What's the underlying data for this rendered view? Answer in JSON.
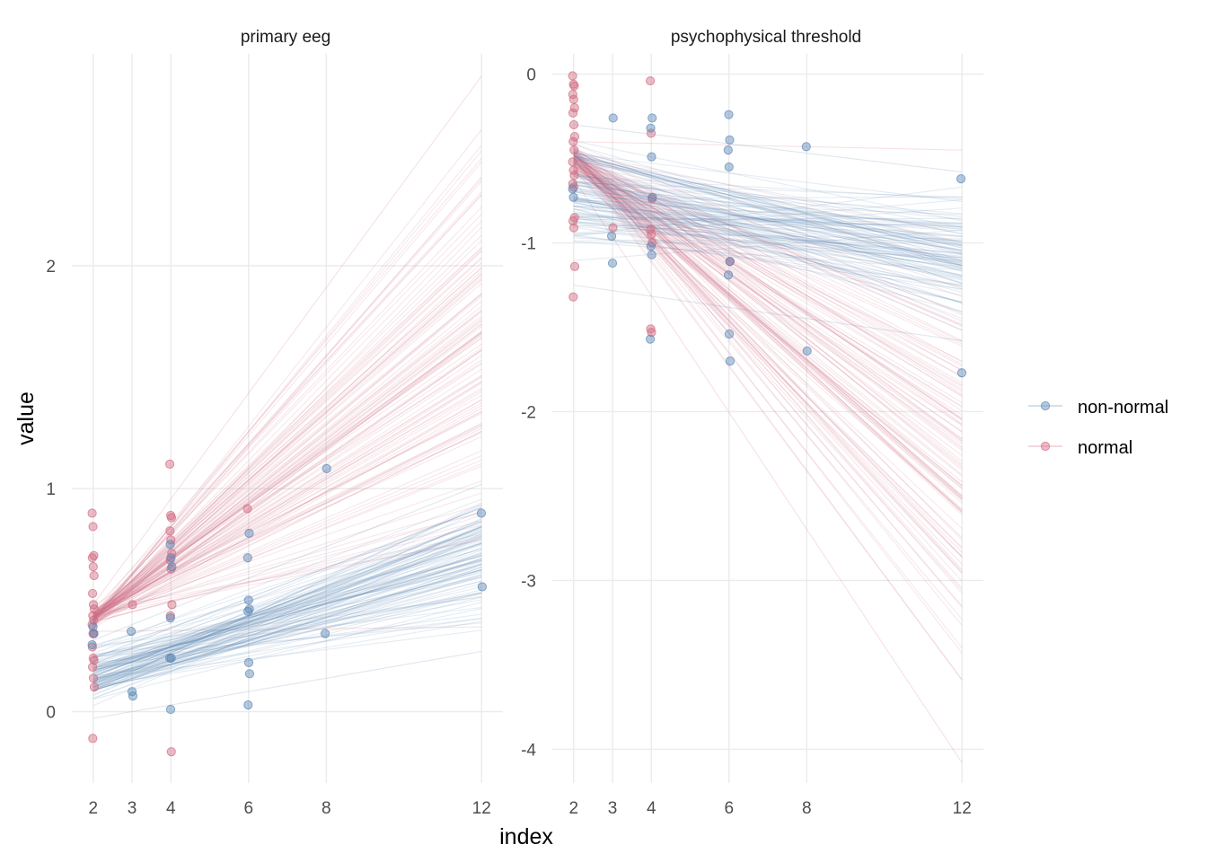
{
  "chart_data": {
    "type": "line",
    "xlabel": "index",
    "ylabel": "value",
    "x_ticks": [
      2,
      3,
      4,
      6,
      8,
      12
    ],
    "legend": {
      "position": "right",
      "entries": [
        {
          "name": "non-normal",
          "color": "#5b88b5"
        },
        {
          "name": "normal",
          "color": "#d06b80"
        }
      ]
    },
    "grid": true,
    "panels": [
      {
        "title": "primary eeg",
        "xlim": [
          1.45,
          12.55
        ],
        "ylim": [
          -0.32,
          2.95
        ],
        "y_ticks": [
          0,
          1,
          2
        ],
        "lines": {
          "non-normal": {
            "at_x2_range": [
              -0.03,
              0.32
            ],
            "at_x12_range": [
              0.27,
              1.02
            ],
            "center_x2": 0.16,
            "center_x12": 0.72
          },
          "normal": {
            "at_x2_range": [
              0.36,
              0.48
            ],
            "at_x12_range": [
              0.38,
              2.85
            ],
            "center_x2": 0.42,
            "center_x12": 1.62
          }
        },
        "points": {
          "non-normal": [
            {
              "x": 2,
              "y": 0.3
            },
            {
              "x": 2,
              "y": 0.38
            },
            {
              "x": 2,
              "y": 0.35
            },
            {
              "x": 3,
              "y": 0.36
            },
            {
              "x": 3,
              "y": 0.09
            },
            {
              "x": 3,
              "y": 0.07
            },
            {
              "x": 4,
              "y": 0.75
            },
            {
              "x": 4,
              "y": 0.69
            },
            {
              "x": 4,
              "y": 0.65
            },
            {
              "x": 4,
              "y": 0.42
            },
            {
              "x": 4,
              "y": 0.24
            },
            {
              "x": 4,
              "y": 0.24
            },
            {
              "x": 4,
              "y": 0.01
            },
            {
              "x": 6,
              "y": 0.8
            },
            {
              "x": 6,
              "y": 0.69
            },
            {
              "x": 6,
              "y": 0.5
            },
            {
              "x": 6,
              "y": 0.46
            },
            {
              "x": 6,
              "y": 0.45
            },
            {
              "x": 6,
              "y": 0.22
            },
            {
              "x": 6,
              "y": 0.17
            },
            {
              "x": 6,
              "y": 0.03
            },
            {
              "x": 8,
              "y": 1.09
            },
            {
              "x": 8,
              "y": 0.35
            },
            {
              "x": 12,
              "y": 0.89
            },
            {
              "x": 12,
              "y": 0.56
            }
          ],
          "normal": [
            {
              "x": 2,
              "y": 0.89
            },
            {
              "x": 2,
              "y": 0.83
            },
            {
              "x": 2,
              "y": 0.7
            },
            {
              "x": 2,
              "y": 0.69
            },
            {
              "x": 2,
              "y": 0.65
            },
            {
              "x": 2,
              "y": 0.61
            },
            {
              "x": 2,
              "y": 0.53
            },
            {
              "x": 2,
              "y": 0.48
            },
            {
              "x": 2,
              "y": 0.46
            },
            {
              "x": 2,
              "y": 0.43
            },
            {
              "x": 2,
              "y": 0.41
            },
            {
              "x": 2,
              "y": 0.39
            },
            {
              "x": 2,
              "y": 0.35
            },
            {
              "x": 2,
              "y": 0.35
            },
            {
              "x": 2,
              "y": 0.29
            },
            {
              "x": 2,
              "y": 0.24
            },
            {
              "x": 2,
              "y": 0.23
            },
            {
              "x": 2,
              "y": 0.2
            },
            {
              "x": 2,
              "y": 0.15
            },
            {
              "x": 2,
              "y": 0.11
            },
            {
              "x": 2,
              "y": -0.12
            },
            {
              "x": 3,
              "y": 0.48
            },
            {
              "x": 4,
              "y": 1.11
            },
            {
              "x": 4,
              "y": 0.88
            },
            {
              "x": 4,
              "y": 0.87
            },
            {
              "x": 4,
              "y": 0.81
            },
            {
              "x": 4,
              "y": 0.77
            },
            {
              "x": 4,
              "y": 0.71
            },
            {
              "x": 4,
              "y": 0.68
            },
            {
              "x": 4,
              "y": 0.64
            },
            {
              "x": 4,
              "y": 0.48
            },
            {
              "x": 4,
              "y": 0.43
            },
            {
              "x": 4,
              "y": -0.18
            },
            {
              "x": 6,
              "y": 0.91
            }
          ]
        }
      },
      {
        "title": "psychophysical threshold",
        "xlim": [
          1.45,
          12.55
        ],
        "ylim": [
          -4.2,
          0.12
        ],
        "y_ticks": [
          0,
          -1,
          -2,
          -3,
          -4
        ],
        "lines": {
          "non-normal": {
            "at_x2_range": [
              -1.25,
              -0.3
            ],
            "at_x12_range": [
              -1.58,
              -0.58
            ],
            "center_x2": -0.72,
            "center_x12": -1.1
          },
          "normal": {
            "at_x2_range": [
              -0.62,
              -0.4
            ],
            "at_x12_range": [
              -4.08,
              -0.45
            ],
            "center_x2": -0.5,
            "center_x12": -2.3
          }
        },
        "points": {
          "non-normal": [
            {
              "x": 2,
              "y": -0.68
            },
            {
              "x": 2,
              "y": -0.73
            },
            {
              "x": 3,
              "y": -0.26
            },
            {
              "x": 3,
              "y": -0.96
            },
            {
              "x": 3,
              "y": -1.12
            },
            {
              "x": 4,
              "y": -0.26
            },
            {
              "x": 4,
              "y": -0.32
            },
            {
              "x": 4,
              "y": -0.49
            },
            {
              "x": 4,
              "y": -0.73
            },
            {
              "x": 4,
              "y": -1.02
            },
            {
              "x": 4,
              "y": -1.07
            },
            {
              "x": 4,
              "y": -1.57
            },
            {
              "x": 6,
              "y": -0.24
            },
            {
              "x": 6,
              "y": -0.39
            },
            {
              "x": 6,
              "y": -0.45
            },
            {
              "x": 6,
              "y": -0.55
            },
            {
              "x": 6,
              "y": -1.11
            },
            {
              "x": 6,
              "y": -1.19
            },
            {
              "x": 6,
              "y": -1.54
            },
            {
              "x": 6,
              "y": -1.7
            },
            {
              "x": 8,
              "y": -0.43
            },
            {
              "x": 8,
              "y": -1.64
            },
            {
              "x": 12,
              "y": -0.62
            },
            {
              "x": 12,
              "y": -1.77
            }
          ],
          "normal": [
            {
              "x": 2,
              "y": -0.01
            },
            {
              "x": 2,
              "y": -0.06
            },
            {
              "x": 2,
              "y": -0.07
            },
            {
              "x": 2,
              "y": -0.12
            },
            {
              "x": 2,
              "y": -0.15
            },
            {
              "x": 2,
              "y": -0.2
            },
            {
              "x": 2,
              "y": -0.23
            },
            {
              "x": 2,
              "y": -0.3
            },
            {
              "x": 2,
              "y": -0.37
            },
            {
              "x": 2,
              "y": -0.4
            },
            {
              "x": 2,
              "y": -0.45
            },
            {
              "x": 2,
              "y": -0.52
            },
            {
              "x": 2,
              "y": -0.57
            },
            {
              "x": 2,
              "y": -0.6
            },
            {
              "x": 2,
              "y": -0.65
            },
            {
              "x": 2,
              "y": -0.67
            },
            {
              "x": 2,
              "y": -0.85
            },
            {
              "x": 2,
              "y": -0.87
            },
            {
              "x": 2,
              "y": -0.91
            },
            {
              "x": 2,
              "y": -1.14
            },
            {
              "x": 2,
              "y": -1.32
            },
            {
              "x": 3,
              "y": -0.91
            },
            {
              "x": 4,
              "y": -0.04
            },
            {
              "x": 4,
              "y": -0.35
            },
            {
              "x": 4,
              "y": -0.74
            },
            {
              "x": 4,
              "y": -0.92
            },
            {
              "x": 4,
              "y": -0.95
            },
            {
              "x": 4,
              "y": -1.0
            },
            {
              "x": 4,
              "y": -1.51
            },
            {
              "x": 4,
              "y": -1.53
            },
            {
              "x": 6,
              "y": -1.11
            }
          ]
        }
      }
    ]
  }
}
